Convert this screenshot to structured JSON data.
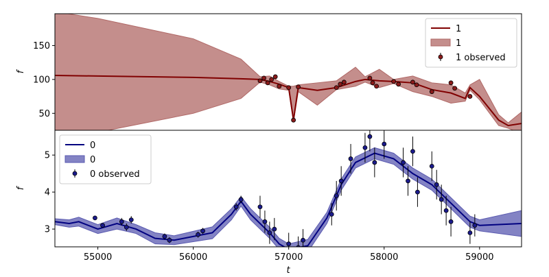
{
  "chart_data": [
    {
      "type": "line",
      "ylabel": "f",
      "legend": "upper right",
      "xlim": [
        54550,
        59440
      ],
      "ylim": [
        25,
        197
      ],
      "yticks": [
        50,
        100,
        150
      ],
      "x": [
        54550,
        55000,
        56000,
        56500,
        56700,
        56800,
        56900,
        57000,
        57050,
        57100,
        57300,
        57500,
        57700,
        57800,
        57950,
        58100,
        58300,
        58500,
        58700,
        58850,
        58900,
        59000,
        59200,
        59300,
        59440
      ],
      "series": [
        {
          "name": "1",
          "kind": "line",
          "color": "#800000",
          "values": [
            106,
            105,
            103,
            101,
            100,
            97,
            93,
            88,
            40,
            88,
            84,
            88,
            97,
            100,
            98,
            97,
            95,
            85,
            80,
            72,
            88,
            75,
            40,
            32,
            35
          ]
        },
        {
          "name": "1",
          "kind": "band",
          "color": "#b06866",
          "upper": [
            200,
            190,
            160,
            130,
            104,
            105,
            97,
            90,
            90,
            92,
            95,
            98,
            118,
            104,
            115,
            100,
            105,
            95,
            92,
            80,
            92,
            100,
            48,
            36,
            52
          ],
          "lower": [
            15,
            22,
            50,
            72,
            96,
            92,
            86,
            84,
            38,
            82,
            62,
            85,
            90,
            96,
            88,
            94,
            82,
            75,
            65,
            68,
            84,
            70,
            32,
            28,
            20
          ]
        },
        {
          "name": "1 observed",
          "kind": "observed",
          "color": "#8b1a1a",
          "x": [
            56700,
            56740,
            56780,
            56820,
            56860,
            56900,
            57000,
            57050,
            57100,
            57500,
            57540,
            57580,
            57850,
            57880,
            57920,
            58100,
            58150,
            58300,
            58340,
            58500,
            58700,
            58740,
            58900
          ],
          "values": [
            98,
            102,
            95,
            100,
            104,
            90,
            88,
            40,
            89,
            88,
            93,
            96,
            102,
            95,
            90,
            97,
            93,
            96,
            92,
            82,
            95,
            87,
            75
          ],
          "errors": [
            3,
            3,
            3,
            3,
            3,
            3,
            3,
            3,
            3,
            3,
            3,
            3,
            3,
            3,
            3,
            3,
            3,
            3,
            3,
            3,
            3,
            3,
            3
          ]
        }
      ]
    },
    {
      "type": "line",
      "ylabel": "f",
      "xlabel": "t",
      "legend": "upper left",
      "xlim": [
        54550,
        59440
      ],
      "ylim": [
        2.52,
        5.67
      ],
      "yticks": [
        3,
        4,
        5
      ],
      "xticks": [
        55000,
        56000,
        57000,
        58000,
        59000
      ],
      "x": [
        54550,
        54700,
        54800,
        55000,
        55200,
        55400,
        55600,
        55800,
        56000,
        56200,
        56400,
        56500,
        56600,
        56800,
        56900,
        57000,
        57200,
        57400,
        57550,
        57700,
        57900,
        58100,
        58300,
        58500,
        58700,
        58900,
        59000,
        59440
      ],
      "series": [
        {
          "name": "0",
          "kind": "line",
          "color": "#000080",
          "values": [
            3.2,
            3.15,
            3.2,
            3.0,
            3.15,
            3.0,
            2.75,
            2.7,
            2.8,
            2.9,
            3.4,
            3.75,
            3.4,
            2.9,
            2.6,
            2.45,
            2.55,
            3.3,
            4.2,
            4.8,
            5.05,
            4.9,
            4.5,
            4.2,
            3.7,
            3.2,
            3.1,
            3.15
          ]
        },
        {
          "name": "0",
          "kind": "band",
          "color": "#5a5ab0",
          "upper": [
            3.28,
            3.25,
            3.32,
            3.12,
            3.3,
            3.12,
            2.9,
            2.82,
            2.94,
            3.06,
            3.55,
            3.88,
            3.55,
            3.05,
            2.75,
            2.6,
            2.72,
            3.45,
            4.35,
            4.95,
            5.2,
            5.05,
            4.65,
            4.35,
            3.85,
            3.35,
            3.25,
            3.5
          ],
          "lower": [
            3.12,
            3.05,
            3.08,
            2.88,
            3.0,
            2.88,
            2.6,
            2.58,
            2.66,
            2.74,
            3.25,
            3.62,
            3.25,
            2.75,
            2.45,
            2.3,
            2.38,
            3.15,
            4.05,
            4.65,
            4.9,
            4.75,
            4.35,
            4.05,
            3.55,
            3.05,
            2.95,
            2.8
          ]
        },
        {
          "name": "0 observed",
          "kind": "observed",
          "color": "#1a1a8c",
          "x": [
            54970,
            55050,
            55250,
            55300,
            55350,
            55700,
            55750,
            56050,
            56100,
            56450,
            56500,
            56700,
            56750,
            56800,
            56850,
            57000,
            57100,
            57150,
            57450,
            57500,
            57550,
            57650,
            57800,
            57850,
            57900,
            58000,
            58200,
            58250,
            58300,
            58350,
            58500,
            58550,
            58600,
            58650,
            58700,
            58900,
            58950
          ],
          "values": [
            3.3,
            3.1,
            3.2,
            3.05,
            3.25,
            2.8,
            2.7,
            2.85,
            2.95,
            3.6,
            3.8,
            3.6,
            3.2,
            2.9,
            3.0,
            2.6,
            2.5,
            2.7,
            3.4,
            3.9,
            4.3,
            4.9,
            5.2,
            5.5,
            4.8,
            5.3,
            4.8,
            4.3,
            5.1,
            4.0,
            4.7,
            4.2,
            3.8,
            3.5,
            3.2,
            2.9,
            3.1
          ],
          "errors": [
            0.05,
            0.05,
            0.1,
            0.1,
            0.1,
            0.08,
            0.08,
            0.08,
            0.08,
            0.1,
            0.1,
            0.3,
            0.3,
            0.3,
            0.3,
            0.3,
            0.3,
            0.3,
            0.3,
            0.4,
            0.4,
            0.4,
            0.4,
            0.4,
            0.4,
            0.4,
            0.4,
            0.4,
            0.4,
            0.4,
            0.4,
            0.4,
            0.4,
            0.4,
            0.4,
            0.3,
            0.3
          ]
        }
      ]
    }
  ]
}
